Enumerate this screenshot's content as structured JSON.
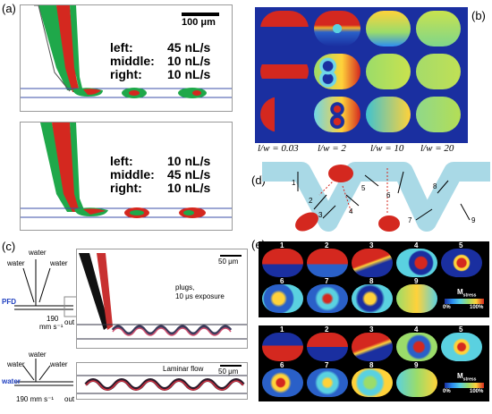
{
  "panels": {
    "a": {
      "label": "(a)",
      "scale_bar": "100 μm",
      "top": {
        "left": "45 nL/s",
        "middle": "10 nL/s",
        "right": "10 nL/s"
      },
      "bottom": {
        "left": "10 nL/s",
        "middle": "45 nL/s",
        "right": "10 nL/s"
      },
      "row_labels": {
        "left": "left:",
        "middle": "middle:",
        "right": "right:"
      }
    },
    "b": {
      "label": "(b)",
      "captions": [
        "l/w = 0.03",
        "l/w = 2",
        "l/w = 10",
        "l/w = 20"
      ]
    },
    "c": {
      "label": "(c)",
      "top_scale": "50 μm",
      "plugs_text": "plugs,",
      "exposure_text": "10 μs exposure",
      "laminar_text": "Laminar flow",
      "bottom_scale": "50 μm",
      "water": "water",
      "pfd": "PFD",
      "speed": "190",
      "speed_unit": "mm s⁻¹",
      "out": "out",
      "bottom_speed": "190 mm s⁻¹"
    },
    "d": {
      "label": "(d)",
      "numbers": [
        "1",
        "2",
        "3",
        "4",
        "5",
        "6",
        "7",
        "8",
        "9"
      ]
    },
    "e": {
      "label": "(e)",
      "numbers": [
        "1",
        "2",
        "3",
        "4",
        "5",
        "6",
        "7",
        "8",
        "9"
      ],
      "legend_title": "M",
      "legend_sub": "stress",
      "legend_min": "0%",
      "legend_max": "100%"
    }
  },
  "colors": {
    "red": "#d4281f",
    "green": "#1fa84a",
    "blue_channel": "#3b4fa8",
    "jet_blue": "#1a2fa0",
    "teal": "#a9d9e6"
  }
}
